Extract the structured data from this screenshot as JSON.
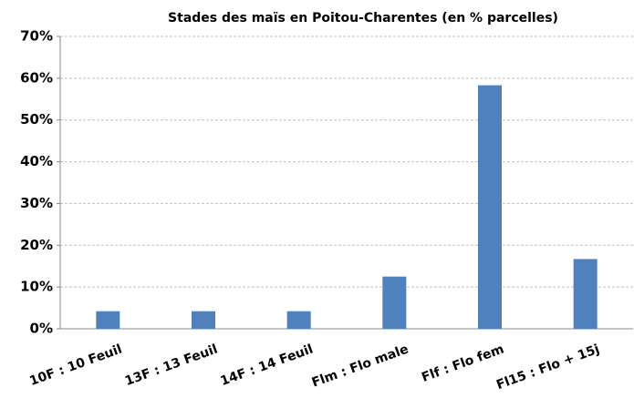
{
  "chart_data": {
    "type": "bar",
    "title": "Stades des maïs en Poitou-Charentes (en % parcelles)",
    "categories": [
      "10F : 10 Feuil",
      "13F : 13 Feuil",
      "14F : 14 Feuil",
      "Flm : Flo male",
      "Flf : Flo fem",
      "Fl15 : Flo + 15j"
    ],
    "values": [
      4.2,
      4.2,
      4.2,
      12.5,
      58.3,
      16.7
    ],
    "color": "#4f81bd",
    "ylim": [
      0,
      70
    ],
    "yticks": [
      {
        "value": 0,
        "label": "0%"
      },
      {
        "value": 10,
        "label": "10%"
      },
      {
        "value": 20,
        "label": "20%"
      },
      {
        "value": 30,
        "label": "30%"
      },
      {
        "value": 40,
        "label": "40%"
      },
      {
        "value": 50,
        "label": "50%"
      },
      {
        "value": 60,
        "label": "60%"
      },
      {
        "value": 70,
        "label": "70%"
      }
    ],
    "grid": true
  }
}
